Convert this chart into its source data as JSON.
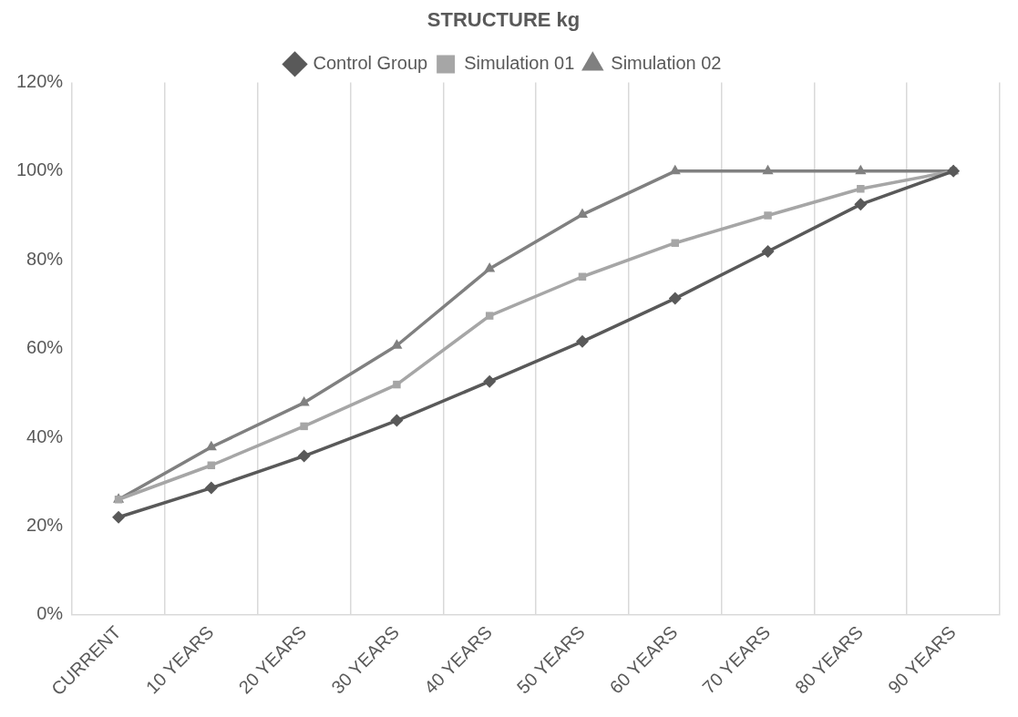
{
  "chart_data": {
    "type": "line",
    "title": "STRUCTURE kg",
    "categories": [
      "CURRENT",
      "10 YEARS",
      "20 YEARS",
      "30 YEARS",
      "40 YEARS",
      "50 YEARS",
      "60 YEARS",
      "70 YEARS",
      "80 YEARS",
      "90 YEARS"
    ],
    "series": [
      {
        "name": "Control Group",
        "color": "#595959",
        "marker": "diamond",
        "values": [
          22,
          28.6,
          35.8,
          43.8,
          52.6,
          61.6,
          71.3,
          81.9,
          92.5,
          100
        ]
      },
      {
        "name": "Simulation 01",
        "color": "#a6a6a6",
        "marker": "square",
        "values": [
          26,
          33.7,
          42.5,
          51.9,
          67.4,
          76.2,
          83.8,
          90,
          96,
          100
        ]
      },
      {
        "name": "Simulation 02",
        "color": "#808080",
        "marker": "triangle",
        "values": [
          26,
          37.8,
          47.8,
          60.7,
          78,
          90.2,
          100,
          100,
          100,
          100
        ]
      }
    ],
    "ylim": [
      0,
      120
    ],
    "yticks": [
      {
        "value": 0,
        "label": "0%"
      },
      {
        "value": 20,
        "label": "20%"
      },
      {
        "value": 40,
        "label": "40%"
      },
      {
        "value": 60,
        "label": "60%"
      },
      {
        "value": 80,
        "label": "80%"
      },
      {
        "value": 100,
        "label": "100%"
      },
      {
        "value": 120,
        "label": "120%"
      }
    ],
    "grid": "x",
    "legend": "top",
    "line_style": "solid"
  }
}
